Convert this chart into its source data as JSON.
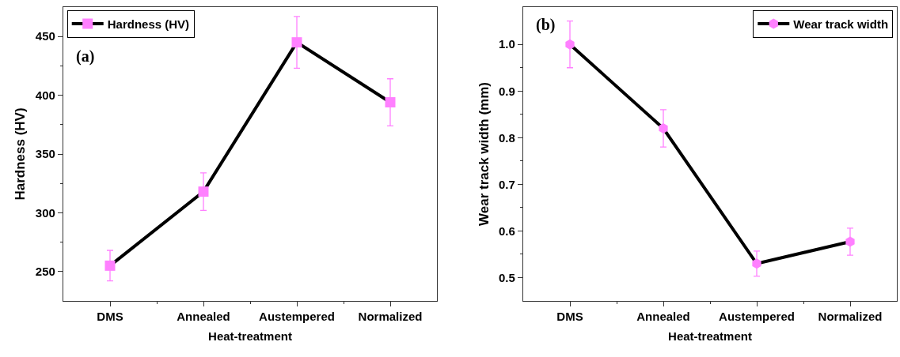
{
  "chart_data": [
    {
      "type": "line",
      "xlabel": "Heat-treatment",
      "ylabel": "Hardness (HV)",
      "categories": [
        "DMS",
        "Annealed",
        "Austempered",
        "Normalized"
      ],
      "series": [
        {
          "name": "Hardness (HV)",
          "color": "#ff80ff",
          "values": [
            255,
            318,
            445,
            394
          ],
          "errors": [
            13,
            16,
            22,
            20
          ]
        }
      ],
      "ylim": [
        225,
        475
      ],
      "yticks": [
        250,
        300,
        350,
        400,
        450
      ],
      "marker": "square",
      "legend": "top left",
      "annotations": [
        "(a)"
      ]
    },
    {
      "type": "line",
      "xlabel": "Heat-treatment",
      "ylabel": "Wear track width (mm)",
      "categories": [
        "DMS",
        "Annealed",
        "Austempered",
        "Normalized"
      ],
      "series": [
        {
          "name": "Wear track width",
          "color": "#ff80ff",
          "values": [
            1.0,
            0.82,
            0.53,
            0.577
          ],
          "errors": [
            0.05,
            0.04,
            0.027,
            0.029
          ]
        }
      ],
      "ylim": [
        0.45,
        1.08
      ],
      "yticks": [
        {
          "value": 0.5,
          "label": "0.5"
        },
        {
          "value": 0.6,
          "label": "0.6"
        },
        {
          "value": 0.7,
          "label": "0.7"
        },
        {
          "value": 0.8,
          "label": "0.8"
        },
        {
          "value": 0.9,
          "label": "0.9"
        },
        {
          "value": 1.0,
          "label": "1.0"
        }
      ],
      "marker": "circle",
      "legend": "top right",
      "annotations": [
        "(b)"
      ]
    }
  ]
}
